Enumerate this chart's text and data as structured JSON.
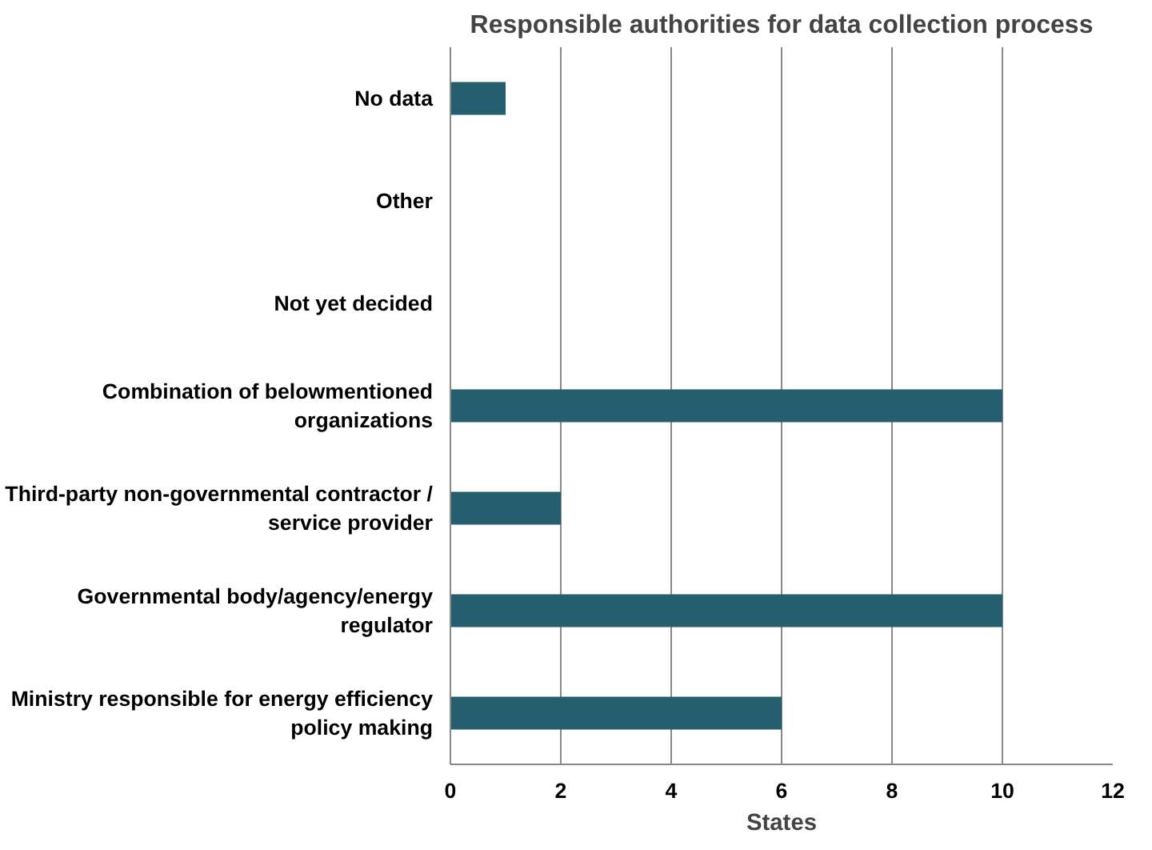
{
  "chart_data": {
    "type": "bar",
    "orientation": "horizontal",
    "title": "Responsible authorities for data collection process",
    "xlabel": "States",
    "categories": [
      "No data",
      "Other",
      "Not yet decided",
      "Combination of belowmentioned\norganizations",
      "Third-party non-governmental contractor /\nservice provider",
      "Governmental body/agency/energy\nregulator",
      "Ministry responsible for energy efficiency\npolicy making"
    ],
    "values": [
      1,
      0,
      0,
      10,
      2,
      10,
      6
    ],
    "color": "#255e6e",
    "xlim": [
      0,
      12
    ],
    "xticks": [
      0,
      2,
      4,
      6,
      8,
      10,
      12
    ],
    "grid": "x"
  }
}
